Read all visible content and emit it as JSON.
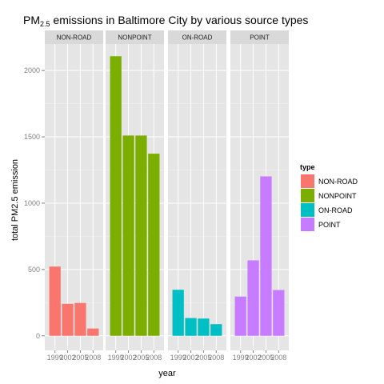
{
  "chart_data": {
    "type": "bar",
    "title_main": "PM",
    "title_sub": "2.5",
    "title_rest": " emissions in Baltimore City by various source types",
    "xlabel": "year",
    "ylabel": "total PM2.5 emission",
    "ylim": [
      -110,
      2200
    ],
    "y_ticks": [
      0,
      500,
      1000,
      1500,
      2000
    ],
    "categories": [
      "1999",
      "2002",
      "2005",
      "2008"
    ],
    "facets": [
      "NON-ROAD",
      "NONPOINT",
      "ON-ROAD",
      "POINT"
    ],
    "grid": true,
    "legend_position": "right",
    "legend_title": "type",
    "series": [
      {
        "name": "NON-ROAD",
        "color": "#F8766D",
        "values": [
          522,
          241,
          248,
          55
        ]
      },
      {
        "name": "NONPOINT",
        "color": "#7CAE00",
        "values": [
          2108,
          1510,
          1510,
          1373
        ]
      },
      {
        "name": "ON-ROAD",
        "color": "#00BFC4",
        "values": [
          347,
          134,
          130,
          88
        ]
      },
      {
        "name": "POINT",
        "color": "#C77CFF",
        "values": [
          296,
          569,
          1202,
          345
        ]
      }
    ]
  }
}
